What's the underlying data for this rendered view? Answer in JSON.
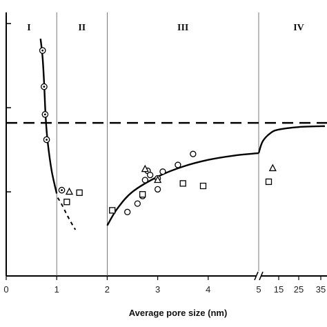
{
  "chart_data": {
    "type": "scatter",
    "title": "",
    "xlabel": "Average pore size (nm)",
    "ylabel": "",
    "x_scale": "segmented: linear 0-5 nm, then compressed 5-35 nm after axis break",
    "x_tick_labels": [
      "0",
      "1",
      "2",
      "3",
      "4",
      "5",
      "15",
      "25",
      "35"
    ],
    "x_tick_values": [
      0,
      1,
      2,
      3,
      4,
      5,
      15,
      25,
      35
    ],
    "y_tick_labels": [],
    "ylim": [
      0,
      3.1
    ],
    "y_ticks": [
      1,
      2
    ],
    "y_top_tick": 3,
    "grid": false,
    "region_labels": [
      {
        "label": "I",
        "x": 0.45
      },
      {
        "label": "II",
        "x": 1.5
      },
      {
        "label": "III",
        "x": 3.5
      },
      {
        "label": "IV",
        "x": 25
      }
    ],
    "region_boundaries": [
      1,
      2,
      5
    ],
    "reference_line": {
      "style": "dashed",
      "y": 1.82
    },
    "series": [
      {
        "marker": "circle-dot",
        "points": [
          [
            0.72,
            2.68
          ],
          [
            0.75,
            2.25
          ],
          [
            0.77,
            1.92
          ],
          [
            0.8,
            1.62
          ],
          [
            1.1,
            1.02
          ]
        ]
      },
      {
        "marker": "circle",
        "points": [
          [
            2.4,
            0.76
          ],
          [
            2.6,
            0.86
          ],
          [
            2.7,
            0.95
          ],
          [
            2.75,
            1.14
          ],
          [
            2.8,
            1.25
          ],
          [
            2.85,
            1.2
          ],
          [
            3.0,
            1.03
          ],
          [
            3.0,
            1.16
          ],
          [
            3.1,
            1.24
          ],
          [
            3.4,
            1.32
          ],
          [
            3.7,
            1.45
          ]
        ]
      },
      {
        "marker": "square",
        "points": [
          [
            1.2,
            0.88
          ],
          [
            1.45,
            0.99
          ],
          [
            2.1,
            0.78
          ],
          [
            2.7,
            0.97
          ],
          [
            3.5,
            1.1
          ],
          [
            3.9,
            1.07
          ],
          [
            10,
            1.12
          ]
        ]
      },
      {
        "marker": "triangle",
        "points": [
          [
            1.25,
            1.0
          ],
          [
            2.75,
            1.27
          ],
          [
            3.0,
            1.14
          ],
          [
            12,
            1.28
          ]
        ]
      }
    ],
    "curves": [
      {
        "style": "solid",
        "points": [
          [
            0.68,
            2.82
          ],
          [
            0.72,
            2.6
          ],
          [
            0.75,
            2.3
          ],
          [
            0.78,
            1.9
          ],
          [
            0.82,
            1.6
          ],
          [
            0.9,
            1.25
          ],
          [
            1.0,
            0.98
          ]
        ]
      },
      {
        "style": "dotted",
        "points": [
          [
            1.02,
            0.93
          ],
          [
            1.1,
            0.85
          ],
          [
            1.2,
            0.73
          ],
          [
            1.3,
            0.62
          ],
          [
            1.37,
            0.55
          ]
        ]
      },
      {
        "style": "solid",
        "points": [
          [
            2.0,
            0.6
          ],
          [
            2.2,
            0.8
          ],
          [
            2.5,
            1.0
          ],
          [
            3.0,
            1.18
          ],
          [
            3.5,
            1.3
          ],
          [
            4.0,
            1.38
          ],
          [
            4.5,
            1.43
          ],
          [
            5.0,
            1.46
          ]
        ]
      },
      {
        "style": "solid",
        "points": [
          [
            5.0,
            1.46
          ],
          [
            7,
            1.6
          ],
          [
            11,
            1.7
          ],
          [
            15,
            1.74
          ],
          [
            25,
            1.77
          ],
          [
            35,
            1.78
          ],
          [
            37,
            1.78
          ]
        ]
      }
    ],
    "axis_break_x": 5
  }
}
